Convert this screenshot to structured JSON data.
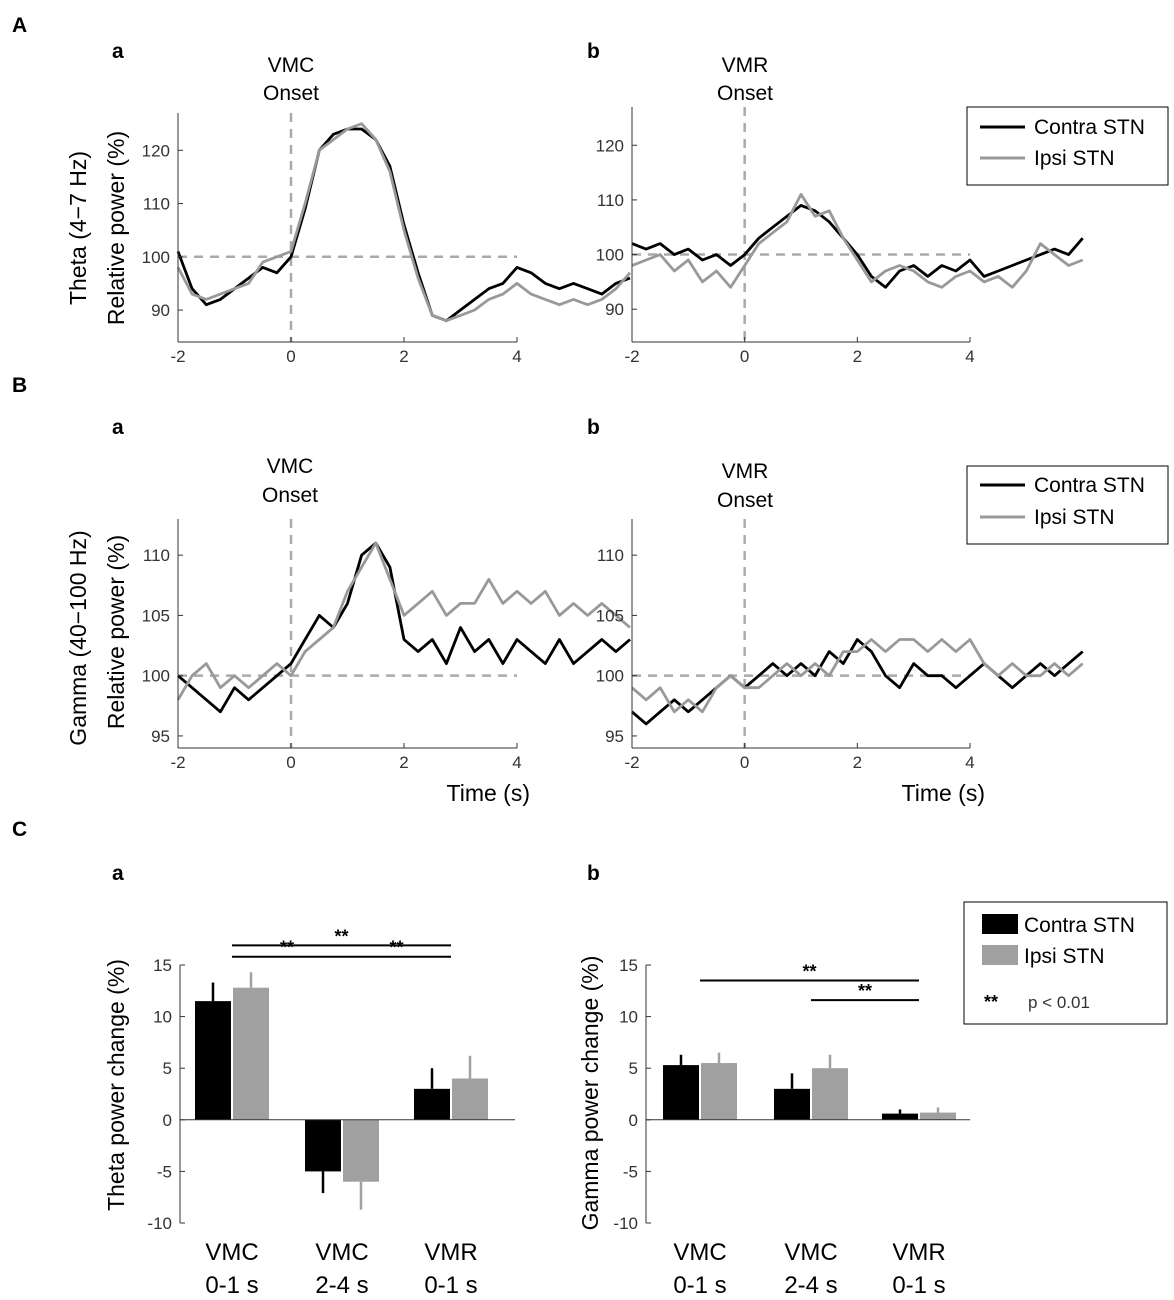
{
  "chart_data": [
    {
      "id": "Aa",
      "type": "line",
      "row_label": "A",
      "panel_label": "a",
      "annotation": [
        "VMC",
        "Onset"
      ],
      "ylabel": [
        "Theta (4−7 Hz)",
        "Relative power (%)"
      ],
      "xlabel": "",
      "xlim": [
        -2,
        4
      ],
      "ylim": [
        84,
        127
      ],
      "xticks": [
        -2,
        0,
        2,
        4
      ],
      "yticks": [
        90,
        100,
        110,
        120
      ],
      "x_start": -2,
      "x_step": 0.25,
      "series": [
        {
          "name": "Contra STN",
          "color": "#000000",
          "values": [
            101,
            94,
            91,
            92,
            94,
            96,
            98,
            97,
            100,
            109,
            120,
            123,
            124,
            124,
            122,
            117,
            106,
            97,
            89,
            88,
            90,
            92,
            94,
            95,
            98,
            97,
            95,
            94,
            95,
            94,
            93,
            95,
            96
          ]
        },
        {
          "name": "Ipsi STN",
          "color": "#999999",
          "values": [
            98,
            93,
            92,
            93,
            94,
            95,
            99,
            100,
            101,
            110,
            120,
            122,
            124,
            125,
            122,
            116,
            105,
            96,
            89,
            88,
            89,
            90,
            92,
            93,
            95,
            93,
            92,
            91,
            92,
            91,
            92,
            94,
            97
          ]
        }
      ]
    },
    {
      "id": "Ab",
      "type": "line",
      "row_label": "",
      "panel_label": "b",
      "annotation": [
        "VMR",
        "Onset"
      ],
      "ylabel": [],
      "xlabel": "",
      "xlim": [
        -2,
        4
      ],
      "ylim": [
        84,
        127
      ],
      "xticks": [
        -2,
        0,
        2,
        4
      ],
      "yticks": [
        90,
        100,
        110,
        120
      ],
      "x_start": -2,
      "x_step": 0.25,
      "series": [
        {
          "name": "Contra STN",
          "color": "#000000",
          "values": [
            102,
            101,
            102,
            100,
            101,
            99,
            100,
            98,
            100,
            103,
            105,
            107,
            109,
            108,
            106,
            103,
            100,
            96,
            94,
            97,
            98,
            96,
            98,
            97,
            99,
            96,
            97,
            98,
            99,
            100,
            101,
            100,
            103
          ]
        },
        {
          "name": "Ipsi STN",
          "color": "#999999",
          "values": [
            98,
            99,
            100,
            97,
            99,
            95,
            97,
            94,
            98,
            102,
            104,
            106,
            111,
            107,
            108,
            103,
            99,
            95,
            97,
            98,
            97,
            95,
            94,
            96,
            97,
            95,
            96,
            94,
            97,
            102,
            100,
            98,
            99
          ]
        }
      ]
    },
    {
      "id": "Ba",
      "type": "line",
      "row_label": "B",
      "panel_label": "a",
      "annotation": [
        "VMC",
        "Onset"
      ],
      "ylabel": [
        "Gamma (40−100 Hz)",
        "Relative power (%)"
      ],
      "xlabel": "Time (s)",
      "xlim": [
        -2,
        4
      ],
      "ylim": [
        94,
        113
      ],
      "xticks": [
        -2,
        0,
        2,
        4
      ],
      "yticks": [
        95,
        100,
        105,
        110
      ],
      "x_start": -2,
      "x_step": 0.25,
      "series": [
        {
          "name": "Contra STN",
          "color": "#000000",
          "values": [
            100,
            99,
            98,
            97,
            99,
            98,
            99,
            100,
            101,
            103,
            105,
            104,
            106,
            110,
            111,
            109,
            103,
            102,
            103,
            101,
            104,
            102,
            103,
            101,
            103,
            102,
            101,
            103,
            101,
            102,
            103,
            102,
            103
          ]
        },
        {
          "name": "Ipsi STN",
          "color": "#999999",
          "values": [
            98,
            100,
            101,
            99,
            100,
            99,
            100,
            101,
            100,
            102,
            103,
            104,
            107,
            109,
            111,
            108,
            105,
            106,
            107,
            105,
            106,
            106,
            108,
            106,
            107,
            106,
            107,
            105,
            106,
            105,
            106,
            105,
            104
          ]
        }
      ]
    },
    {
      "id": "Bb",
      "type": "line",
      "row_label": "",
      "panel_label": "b",
      "annotation": [
        "VMR",
        "Onset"
      ],
      "ylabel": [],
      "xlabel": "Time (s)",
      "xlim": [
        -2,
        4
      ],
      "ylim": [
        94,
        113
      ],
      "xticks": [
        -2,
        0,
        2,
        4
      ],
      "yticks": [
        95,
        100,
        105,
        110
      ],
      "x_start": -2,
      "x_step": 0.25,
      "series": [
        {
          "name": "Contra STN",
          "color": "#000000",
          "values": [
            97,
            96,
            97,
            98,
            97,
            98,
            99,
            100,
            99,
            100,
            101,
            100,
            101,
            100,
            102,
            101,
            103,
            102,
            100,
            99,
            101,
            100,
            100,
            99,
            100,
            101,
            100,
            99,
            100,
            101,
            100,
            101,
            102
          ]
        },
        {
          "name": "Ipsi STN",
          "color": "#999999",
          "values": [
            99,
            98,
            99,
            97,
            98,
            97,
            99,
            100,
            99,
            99,
            100,
            101,
            100,
            101,
            100,
            102,
            102,
            103,
            102,
            103,
            103,
            102,
            103,
            102,
            103,
            101,
            100,
            101,
            100,
            100,
            101,
            100,
            101
          ]
        }
      ]
    },
    {
      "id": "Ca",
      "type": "bar",
      "row_label": "C",
      "panel_label": "a",
      "ylabel": "Theta power change (%)",
      "ylim": [
        -10,
        15
      ],
      "yticks": [
        -10,
        -5,
        0,
        5,
        10,
        15
      ],
      "categories": [
        [
          "VMC",
          "0-1 s"
        ],
        [
          "VMC",
          "2-4 s"
        ],
        [
          "VMR",
          "0-1 s"
        ]
      ],
      "series": [
        {
          "name": "Contra STN",
          "color": "#000000",
          "values": [
            11.5,
            -5.0,
            3.0
          ],
          "errors": [
            1.8,
            2.1,
            2.0
          ]
        },
        {
          "name": "Ipsi STN",
          "color": "#a0a0a0",
          "values": [
            12.8,
            -6.0,
            4.0
          ],
          "errors": [
            1.5,
            2.7,
            2.2
          ]
        }
      ],
      "significance": [
        {
          "from": 0,
          "to": 2,
          "label": "**",
          "level": 16.9
        },
        {
          "from": 0,
          "to": 1,
          "label": "**",
          "level": 15.8
        },
        {
          "from": 1,
          "to": 2,
          "label": "**",
          "level": 15.8
        }
      ]
    },
    {
      "id": "Cb",
      "type": "bar",
      "row_label": "",
      "panel_label": "b",
      "ylabel": "Gamma power change (%)",
      "ylim": [
        -10,
        15
      ],
      "yticks": [
        -10,
        -5,
        0,
        5,
        10,
        15
      ],
      "categories": [
        [
          "VMC",
          "0-1 s"
        ],
        [
          "VMC",
          "2-4 s"
        ],
        [
          "VMR",
          "0-1 s"
        ]
      ],
      "series": [
        {
          "name": "Contra STN",
          "color": "#000000",
          "values": [
            5.3,
            3.0,
            0.6
          ],
          "errors": [
            1.0,
            1.5,
            0.4
          ]
        },
        {
          "name": "Ipsi STN",
          "color": "#a0a0a0",
          "values": [
            5.5,
            5.0,
            0.7
          ],
          "errors": [
            1.0,
            1.3,
            0.5
          ]
        }
      ],
      "significance": [
        {
          "from": 0,
          "to": 2,
          "label": "**",
          "level": 13.5
        },
        {
          "from": 1,
          "to": 2,
          "label": "**",
          "level": 11.6
        }
      ]
    }
  ],
  "legends": {
    "A": [
      "Contra STN",
      "Ipsi STN"
    ],
    "B": [
      "Contra STN",
      "Ipsi STN"
    ],
    "C": [
      "Contra STN",
      "Ipsi STN"
    ],
    "c_note_stars": "**",
    "c_note_text": "p < 0.01"
  }
}
